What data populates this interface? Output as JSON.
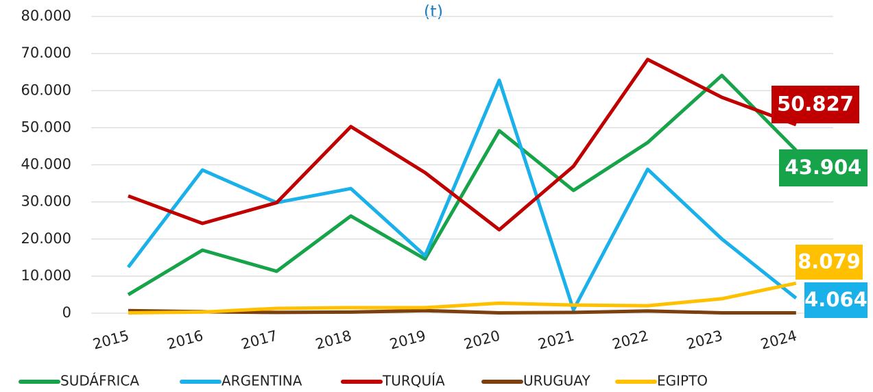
{
  "chart_data": {
    "type": "line",
    "title": "(t)",
    "categories": [
      "2015",
      "2016",
      "2017",
      "2018",
      "2019",
      "2020",
      "2021",
      "2022",
      "2023",
      "2024"
    ],
    "series": [
      {
        "name": "SUDÁFRICA",
        "color": "#16a34a",
        "values": [
          5000,
          17000,
          11300,
          26200,
          14600,
          49200,
          33100,
          46000,
          64100,
          43904
        ],
        "value_labels": [
          null,
          null,
          null,
          null,
          null,
          null,
          null,
          null,
          null,
          "43.904"
        ]
      },
      {
        "name": "ARGENTINA",
        "color": "#1ab0ea",
        "values": [
          12400,
          38600,
          29800,
          33600,
          15500,
          62800,
          900,
          38800,
          20000,
          4064
        ],
        "value_labels": [
          null,
          null,
          null,
          null,
          null,
          null,
          null,
          null,
          null,
          "4.064"
        ]
      },
      {
        "name": "TURQUÍA",
        "color": "#c00000",
        "values": [
          31600,
          24200,
          29800,
          50300,
          37900,
          22500,
          39600,
          68400,
          58200,
          50827
        ],
        "value_labels": [
          null,
          null,
          null,
          null,
          null,
          null,
          null,
          null,
          null,
          "50.827"
        ]
      },
      {
        "name": "URUGUAY",
        "color": "#7b3f10",
        "values": [
          700,
          400,
          200,
          300,
          700,
          100,
          200,
          600,
          100,
          100
        ]
      },
      {
        "name": "EGIPTO",
        "color": "#ffc000",
        "values": [
          100,
          300,
          1300,
          1500,
          1500,
          2700,
          2200,
          2000,
          3900,
          8079
        ],
        "value_labels": [
          null,
          null,
          null,
          null,
          null,
          null,
          null,
          null,
          null,
          "8.079"
        ]
      }
    ],
    "ylim": [
      0,
      80000
    ],
    "yticks": [
      0,
      {
        "value": 10000,
        "label": "10.000"
      },
      {
        "value": 20000,
        "label": "20.000"
      },
      {
        "value": 30000,
        "label": "30.000"
      },
      {
        "value": 40000,
        "label": "40.000"
      },
      {
        "value": 50000,
        "label": "50.000"
      },
      {
        "value": 60000,
        "label": "60.000"
      },
      {
        "value": 70000,
        "label": "70.000"
      },
      {
        "value": 80000,
        "label": "80.000"
      }
    ],
    "grid": true,
    "legend": "bottom"
  }
}
